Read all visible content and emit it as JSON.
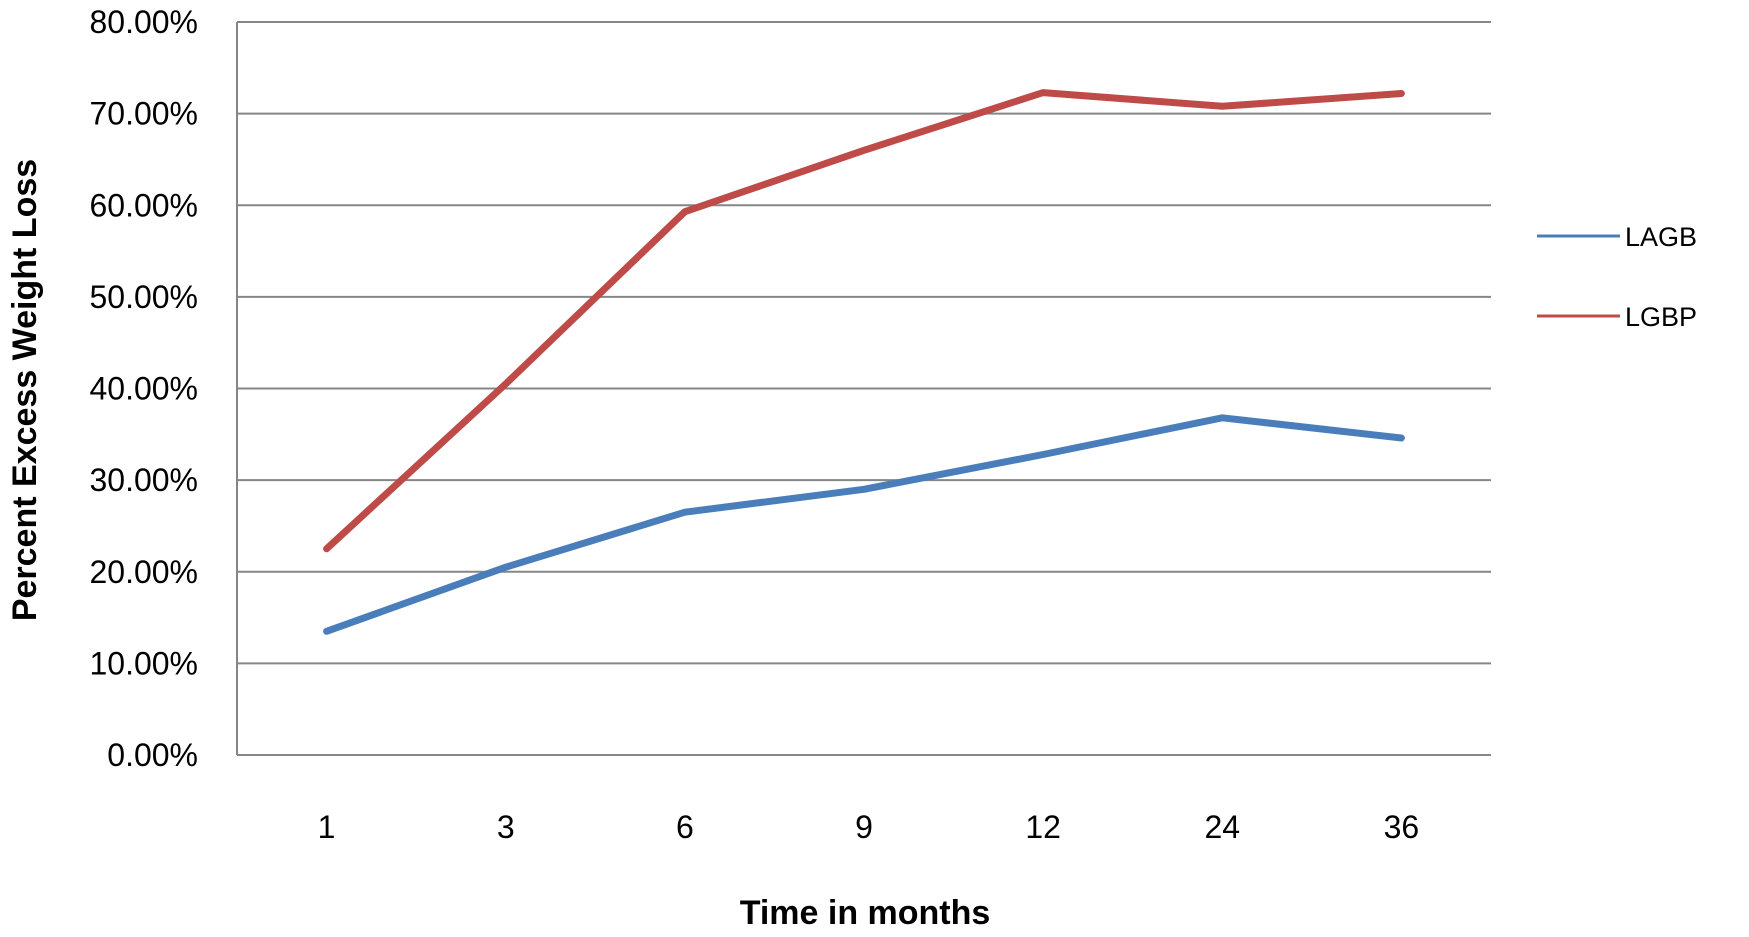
{
  "chart_data": {
    "type": "line",
    "title": "",
    "xlabel": "Time in months",
    "ylabel": "Percent Excess Weight Loss",
    "categories": [
      "1",
      "3",
      "6",
      "9",
      "12",
      "24",
      "36"
    ],
    "series": [
      {
        "name": "LAGB",
        "color": "#4a7ebb",
        "values": [
          13.5,
          20.5,
          26.5,
          29.0,
          32.8,
          36.8,
          34.6
        ]
      },
      {
        "name": "LGBP",
        "color": "#be4b48",
        "values": [
          22.5,
          40.5,
          59.3,
          66.0,
          72.3,
          70.8,
          72.2
        ]
      }
    ],
    "ylim": [
      0,
      80
    ],
    "yticks": [
      0,
      10,
      20,
      30,
      40,
      50,
      60,
      70,
      80
    ],
    "ytick_labels": [
      "0.00%",
      "10.00%",
      "20.00%",
      "30.00%",
      "40.00%",
      "50.00%",
      "60.00%",
      "70.00%",
      "80.00%"
    ],
    "grid": true,
    "legend_position": "right",
    "gridline_color": "#868686",
    "axis_color": "#868686"
  }
}
